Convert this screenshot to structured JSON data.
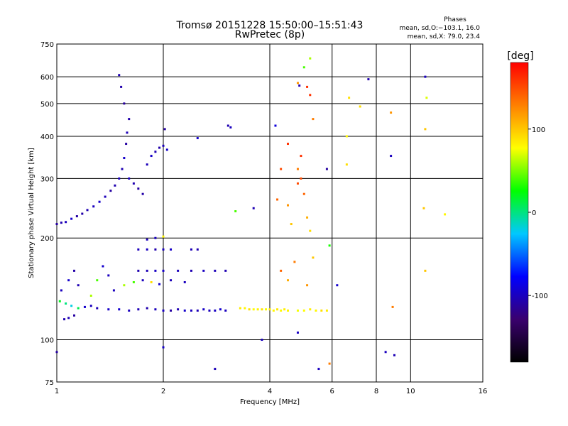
{
  "chart_data": {
    "type": "scatter",
    "title": "Tromsø 20151228 15:50:00–15:51:43",
    "subtitle": "RwPretec (8p)",
    "stats_title": "Phases",
    "stats_line1": "mean, sd,O:−103.1, 16.0",
    "stats_line2": "mean, sd,X:  79.0, 23.4",
    "xlabel": "Frequency [MHz]",
    "ylabel": "Stationary phase Virtual Height [km]",
    "x_scale": "log",
    "y_scale": "log",
    "xlim": [
      1,
      16
    ],
    "ylim": [
      75,
      750
    ],
    "x_ticks": [
      1,
      2,
      4,
      6,
      8,
      10,
      16
    ],
    "y_ticks": [
      75,
      100,
      200,
      300,
      400,
      500,
      600,
      750
    ],
    "x_gridlines": [
      2,
      4,
      6,
      8,
      10
    ],
    "y_gridlines": [
      100,
      200,
      300,
      400,
      500,
      600
    ],
    "colorbar": {
      "label": "[deg]",
      "range": [
        -180,
        180
      ],
      "ticks": [
        100,
        0,
        -100
      ],
      "colors": [
        "#000000",
        "#3a006e",
        "#0000ff",
        "#00c8ff",
        "#00ff00",
        "#ffff00",
        "#ff8000",
        "#ff0000"
      ]
    },
    "series": [
      {
        "points": [
          [
            1.0,
            220
          ],
          [
            1.03,
            222
          ],
          [
            1.06,
            223
          ],
          [
            1.1,
            228
          ],
          [
            1.14,
            232
          ],
          [
            1.18,
            236
          ],
          [
            1.22,
            242
          ],
          [
            1.27,
            248
          ],
          [
            1.32,
            256
          ],
          [
            1.37,
            265
          ],
          [
            1.42,
            276
          ],
          [
            1.46,
            286
          ],
          [
            1.5,
            300
          ],
          [
            1.53,
            320
          ],
          [
            1.55,
            345
          ],
          [
            1.57,
            380
          ],
          [
            1.58,
            410
          ],
          [
            1.6,
            450
          ],
          [
            1.55,
            500
          ],
          [
            1.52,
            560
          ],
          [
            1.5,
            607
          ],
          [
            1.6,
            300
          ],
          [
            1.65,
            290
          ],
          [
            1.7,
            280
          ],
          [
            1.75,
            270
          ],
          [
            1.8,
            330
          ],
          [
            1.85,
            350
          ],
          [
            1.9,
            360
          ],
          [
            1.95,
            370
          ],
          [
            2.0,
            375
          ],
          [
            2.05,
            365
          ],
          [
            2.02,
            420
          ],
          [
            1.02,
            130
          ],
          [
            1.06,
            128
          ],
          [
            1.1,
            126
          ],
          [
            1.15,
            124
          ],
          [
            1.2,
            125
          ],
          [
            1.25,
            126
          ],
          [
            1.3,
            124
          ],
          [
            1.4,
            123
          ],
          [
            1.5,
            123
          ],
          [
            1.6,
            122
          ],
          [
            1.7,
            123
          ],
          [
            1.8,
            124
          ],
          [
            1.9,
            123
          ],
          [
            2.0,
            122
          ],
          [
            2.1,
            122
          ],
          [
            2.2,
            123
          ],
          [
            2.3,
            122
          ],
          [
            2.4,
            122
          ],
          [
            2.5,
            122
          ],
          [
            2.6,
            123
          ],
          [
            2.7,
            122
          ],
          [
            2.8,
            122
          ],
          [
            2.9,
            123
          ],
          [
            3.0,
            122
          ],
          [
            1.05,
            115
          ],
          [
            1.08,
            116
          ],
          [
            1.12,
            118
          ],
          [
            1.03,
            140
          ],
          [
            1.08,
            150
          ],
          [
            1.12,
            160
          ],
          [
            1.15,
            145
          ],
          [
            1.25,
            135
          ],
          [
            1.3,
            150
          ],
          [
            1.35,
            165
          ],
          [
            1.4,
            155
          ],
          [
            1.45,
            140
          ],
          [
            1.7,
            160
          ],
          [
            1.8,
            160
          ],
          [
            1.9,
            160
          ],
          [
            2.0,
            160
          ],
          [
            2.2,
            160
          ],
          [
            2.4,
            160
          ],
          [
            2.6,
            160
          ],
          [
            2.8,
            160
          ],
          [
            3.0,
            160
          ],
          [
            1.7,
            185
          ],
          [
            1.8,
            185
          ],
          [
            1.9,
            185
          ],
          [
            2.0,
            185
          ],
          [
            2.1,
            185
          ],
          [
            2.4,
            185
          ],
          [
            2.5,
            185
          ],
          [
            1.8,
            198
          ],
          [
            1.9,
            200
          ],
          [
            2.0,
            202
          ],
          [
            1.55,
            145
          ],
          [
            1.65,
            148
          ],
          [
            1.75,
            150
          ],
          [
            1.85,
            148
          ],
          [
            1.95,
            146
          ],
          [
            2.1,
            150
          ],
          [
            2.3,
            148
          ],
          [
            2.5,
            395
          ],
          [
            3.05,
            430
          ],
          [
            3.1,
            425
          ],
          [
            2.0,
            95
          ],
          [
            1.0,
            92
          ],
          [
            4.15,
            430
          ],
          [
            4.8,
            575
          ],
          [
            4.85,
            565
          ],
          [
            5.8,
            320
          ],
          [
            5.9,
            190
          ],
          [
            6.2,
            145
          ],
          [
            7.2,
            490
          ],
          [
            7.6,
            590
          ],
          [
            8.8,
            350
          ],
          [
            9.0,
            90
          ],
          [
            8.5,
            92
          ],
          [
            11.0,
            160
          ],
          [
            11.0,
            600
          ],
          [
            4.8,
            105
          ],
          [
            5.5,
            82
          ],
          [
            2.8,
            82
          ],
          [
            3.8,
            100
          ],
          [
            3.6,
            245
          ],
          [
            3.2,
            240
          ]
        ],
        "phase": [
          -110,
          -105,
          -100,
          -95,
          -110,
          -108,
          -104,
          -100,
          -96,
          -102,
          -110,
          -105,
          -100,
          -104,
          -96,
          -110,
          -103,
          -107,
          -112,
          -106,
          -104,
          -100,
          -105,
          -110,
          -108,
          -102,
          -96,
          -104,
          -107,
          -101,
          -95,
          -110,
          20,
          0,
          -20,
          10,
          -95,
          -100,
          -103,
          -97,
          -94,
          -100,
          -103,
          -106,
          -101,
          -98,
          -110,
          -104,
          -96,
          -100,
          -103,
          -97,
          -101,
          -98,
          -95,
          -100,
          -105,
          -103,
          -110,
          -100,
          -95,
          -108,
          -104,
          60,
          40,
          -95,
          -100,
          -100,
          -105,
          -103,
          -98,
          -96,
          -101,
          -104,
          -99,
          -102,
          -104,
          -101,
          -99,
          -106,
          -100,
          -97,
          -103,
          -105,
          -101,
          -99,
          80,
          60,
          40,
          -100,
          90,
          -95,
          -102,
          -100,
          -95,
          -105,
          -100,
          -96,
          -110,
          -90,
          120,
          -104,
          -110,
          30,
          -95,
          90,
          -105,
          -100,
          -103,
          -100,
          100,
          -100,
          -98,
          -100,
          -102,
          -100,
          -104,
          40,
          -95
        ]
      },
      {
        "points": [
          [
            3.3,
            124
          ],
          [
            3.4,
            124
          ],
          [
            3.5,
            123
          ],
          [
            3.6,
            123
          ],
          [
            3.7,
            123
          ],
          [
            3.8,
            123
          ],
          [
            3.9,
            123
          ],
          [
            4.0,
            123
          ],
          [
            4.1,
            122
          ],
          [
            4.2,
            123
          ],
          [
            4.3,
            122
          ],
          [
            4.4,
            123
          ],
          [
            4.5,
            122
          ],
          [
            4.8,
            122
          ],
          [
            5.0,
            122
          ],
          [
            5.2,
            123
          ],
          [
            5.4,
            122
          ],
          [
            5.6,
            122
          ],
          [
            5.8,
            122
          ],
          [
            4.2,
            260
          ],
          [
            4.5,
            250
          ],
          [
            4.6,
            220
          ],
          [
            4.7,
            170
          ],
          [
            4.8,
            290
          ],
          [
            4.9,
            300
          ],
          [
            5.0,
            270
          ],
          [
            5.1,
            230
          ],
          [
            5.2,
            210
          ],
          [
            4.9,
            350
          ],
          [
            5.1,
            560
          ],
          [
            5.2,
            530
          ],
          [
            5.3,
            450
          ],
          [
            6.6,
            400
          ],
          [
            6.7,
            520
          ],
          [
            8.8,
            470
          ],
          [
            8.9,
            125
          ],
          [
            11.0,
            420
          ],
          [
            11.1,
            520
          ],
          [
            12.5,
            235
          ],
          [
            4.3,
            160
          ],
          [
            4.5,
            150
          ],
          [
            5.1,
            145
          ],
          [
            5.3,
            175
          ],
          [
            5.9,
            85
          ],
          [
            6.6,
            330
          ],
          [
            10.9,
            245
          ],
          [
            4.3,
            320
          ],
          [
            4.5,
            380
          ],
          [
            4.8,
            320
          ],
          [
            5.2,
            680
          ],
          [
            5.0,
            640
          ]
        ],
        "phase": [
          85,
          80,
          90,
          78,
          82,
          88,
          76,
          84,
          80,
          86,
          79,
          83,
          81,
          75,
          78,
          84,
          80,
          90,
          85,
          140,
          120,
          100,
          130,
          150,
          150,
          140,
          110,
          90,
          160,
          160,
          160,
          130,
          80,
          90,
          120,
          130,
          100,
          70,
          80,
          140,
          110,
          120,
          100,
          130,
          90,
          100,
          150,
          160,
          130,
          60,
          40
        ]
      }
    ]
  }
}
